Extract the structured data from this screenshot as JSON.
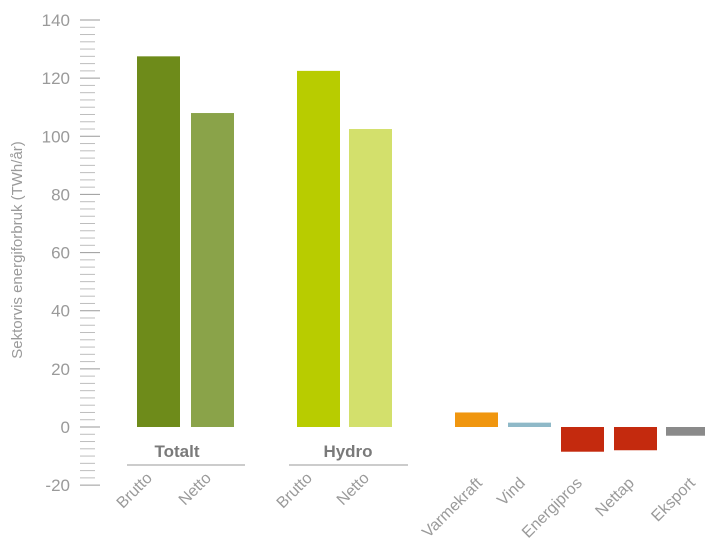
{
  "chart_data": {
    "type": "bar",
    "ylabel": "Sektorvis energiforbruk (TWh/år)",
    "ylim": [
      -20,
      140
    ],
    "yticks": [
      140,
      120,
      100,
      80,
      60,
      40,
      20,
      0,
      -20
    ],
    "groups": [
      {
        "label": "Totalt",
        "members": [
          0,
          1
        ]
      },
      {
        "label": "Hydro",
        "members": [
          2,
          3
        ]
      }
    ],
    "categories": [
      "Brutto",
      "Netto",
      "Brutto",
      "Netto",
      "Varmekraft",
      "Vind",
      "Energipros",
      "Nettap",
      "Eksport"
    ],
    "values": [
      127.5,
      108,
      122.5,
      102.5,
      5,
      1.5,
      -8.5,
      -8,
      -3
    ],
    "colors": [
      "#6e8b1a",
      "#8aa349",
      "#b8cc00",
      "#d3e06c",
      "#f0960f",
      "#8fb9c8",
      "#c42a0e",
      "#c42a0e",
      "#8a8a8a"
    ]
  }
}
